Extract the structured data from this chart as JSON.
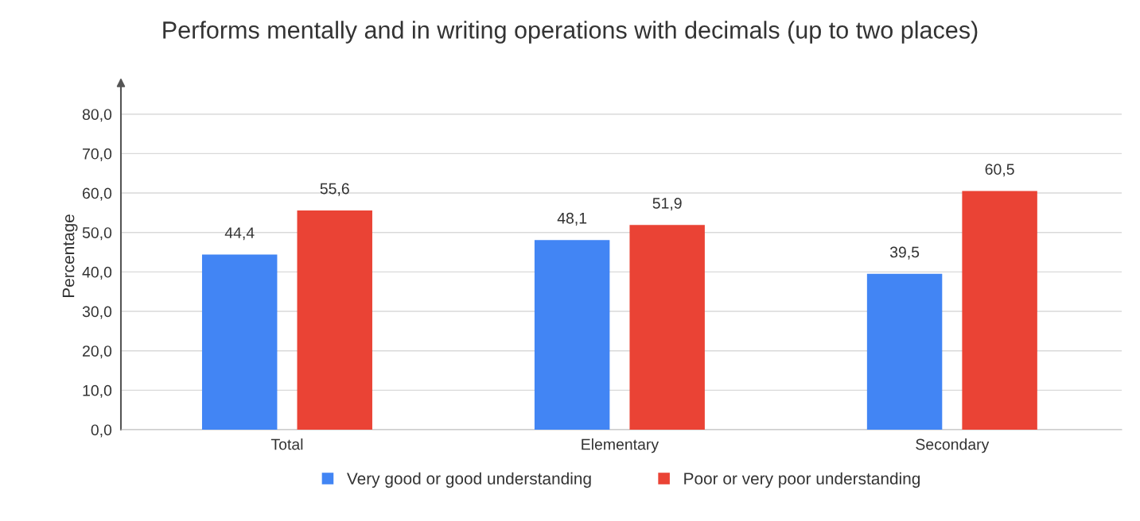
{
  "chart_data": {
    "type": "bar",
    "title": "Performs mentally and in writing operations with decimals (up to two places)",
    "ylabel": "Percentage",
    "categories": [
      "Total",
      "Elementary",
      "Secondary"
    ],
    "series": [
      {
        "name": "Very good or good understanding",
        "color": "#4285f4",
        "values": [
          44.4,
          48.1,
          39.5
        ],
        "value_labels": [
          "44,4",
          "48,1",
          "39,5"
        ]
      },
      {
        "name": "Poor or very poor understanding",
        "color": "#ea4335",
        "values": [
          55.6,
          51.9,
          60.5
        ],
        "value_labels": [
          "55,6",
          "51,9",
          "60,5"
        ]
      }
    ],
    "ylim": [
      0,
      88
    ],
    "yticks": [
      {
        "value": 0,
        "label": "0,0"
      },
      {
        "value": 10,
        "label": "10,0"
      },
      {
        "value": 20,
        "label": "20,0"
      },
      {
        "value": 30,
        "label": "30,0"
      },
      {
        "value": 40,
        "label": "40,0"
      },
      {
        "value": 50,
        "label": "50,0"
      },
      {
        "value": 60,
        "label": "60,0"
      },
      {
        "value": 70,
        "label": "70,0"
      },
      {
        "value": 80,
        "label": "80,0"
      }
    ],
    "grid": "y",
    "legend": "bottom"
  }
}
